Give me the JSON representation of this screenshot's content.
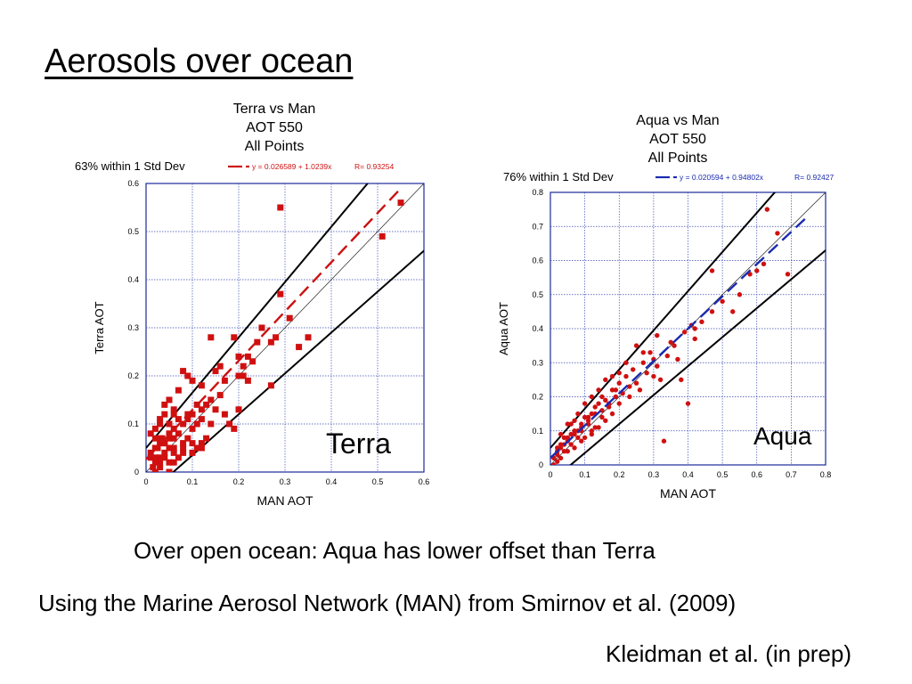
{
  "slide": {
    "title": "Aerosols over ocean",
    "caption_main": "Over open ocean:   Aqua has lower offset than Terra",
    "caption_source": "Using the Marine Aerosol Network (MAN)  from Smirnov et al. (2009)",
    "caption_ref": "Kleidman et al. (in prep)"
  },
  "chart_data": [
    {
      "type": "scatter",
      "title_lines": [
        "Terra vs Man",
        "AOT 550",
        "All Points"
      ],
      "stat_label": "63% within 1 Std Dev",
      "fit_label": "y = 0.026589 + 1.0239x",
      "r_label": "R= 0.93254",
      "xlabel": "MAN AOT",
      "ylabel": "Terra AOT",
      "xlim": [
        0,
        0.6
      ],
      "ylim": [
        0,
        0.6
      ],
      "xticks": [
        "0",
        "0.1",
        "0.2",
        "0.3",
        "0.4",
        "0.5",
        "0.6"
      ],
      "yticks": [
        "0",
        "0.1",
        "0.2",
        "0.3",
        "0.4",
        "0.5",
        "0.6"
      ],
      "grid": true,
      "marker": "square",
      "point_color": "#d01010",
      "fit_color": "#cc1111",
      "fit": {
        "intercept": 0.026589,
        "slope": 1.0239
      },
      "error_envelope": {
        "slope_upper": 1.15,
        "offset_upper": 0.05,
        "slope_lower": 0.85,
        "offset_lower": -0.05
      },
      "overlay_label": "Terra",
      "x": [
        0.55,
        0.51,
        0.29,
        0.29,
        0.31,
        0.35,
        0.33,
        0.27,
        0.28,
        0.19,
        0.2,
        0.21,
        0.2,
        0.22,
        0.24,
        0.25,
        0.21,
        0.23,
        0.27,
        0.14,
        0.15,
        0.16,
        0.17,
        0.16,
        0.14,
        0.1,
        0.12,
        0.13,
        0.11,
        0.09,
        0.08,
        0.1,
        0.12,
        0.12,
        0.14,
        0.11,
        0.07,
        0.06,
        0.05,
        0.06,
        0.07,
        0.04,
        0.03,
        0.05,
        0.04,
        0.03,
        0.02,
        0.01,
        0.02,
        0.03,
        0.05,
        0.06,
        0.07,
        0.08,
        0.09,
        0.1,
        0.09,
        0.08,
        0.06,
        0.05,
        0.04,
        0.03,
        0.02,
        0.02,
        0.01,
        0.02,
        0.03,
        0.04,
        0.06,
        0.08,
        0.1,
        0.11,
        0.12,
        0.13,
        0.15,
        0.05,
        0.06,
        0.03,
        0.02,
        0.01,
        0.18,
        0.19,
        0.2,
        0.17,
        0.22,
        0.03,
        0.04,
        0.05,
        0.08,
        0.09,
        0.07,
        0.1,
        0.12,
        0.02,
        0.04,
        0.06,
        0.05,
        0.015,
        0.025,
        0.035
      ],
      "y": [
        0.56,
        0.49,
        0.55,
        0.37,
        0.32,
        0.28,
        0.26,
        0.27,
        0.28,
        0.28,
        0.24,
        0.22,
        0.2,
        0.24,
        0.27,
        0.3,
        0.2,
        0.23,
        0.18,
        0.28,
        0.21,
        0.22,
        0.19,
        0.16,
        0.15,
        0.19,
        0.18,
        0.14,
        0.14,
        0.2,
        0.21,
        0.12,
        0.13,
        0.11,
        0.1,
        0.1,
        0.17,
        0.13,
        0.1,
        0.12,
        0.11,
        0.14,
        0.11,
        0.15,
        0.12,
        0.1,
        0.09,
        0.08,
        0.07,
        0.06,
        0.08,
        0.09,
        0.08,
        0.1,
        0.11,
        0.09,
        0.07,
        0.06,
        0.07,
        0.05,
        0.06,
        0.07,
        0.05,
        0.03,
        0.04,
        0.02,
        0.03,
        0.04,
        0.05,
        0.04,
        0.06,
        0.05,
        0.06,
        0.07,
        0.13,
        0.0,
        0.02,
        0.01,
        0.0,
        0.03,
        0.1,
        0.09,
        0.13,
        0.12,
        0.19,
        0.02,
        0.03,
        0.07,
        0.05,
        0.12,
        0.03,
        0.04,
        0.05,
        0.05,
        0.06,
        0.04,
        0.02,
        0.01,
        0.05,
        0.07
      ]
    },
    {
      "type": "scatter",
      "title_lines": [
        "Aqua vs Man",
        "AOT 550",
        "All Points"
      ],
      "stat_label": "76% within 1 Std Dev",
      "fit_label": "y = 0.020594 + 0.94802x",
      "r_label": "R= 0.92427",
      "xlabel": "MAN AOT",
      "ylabel": "Aqua AOT",
      "xlim": [
        0,
        0.8
      ],
      "ylim": [
        0,
        0.8
      ],
      "xticks": [
        "0",
        "0.1",
        "0.2",
        "0.3",
        "0.4",
        "0.5",
        "0.6",
        "0.7",
        "0.8"
      ],
      "yticks": [
        "0",
        "0.1",
        "0.2",
        "0.3",
        "0.4",
        "0.5",
        "0.6",
        "0.7",
        "0.8"
      ],
      "grid": true,
      "marker": "circle",
      "point_color": "#d01010",
      "fit_color": "#1a2bb0",
      "fit": {
        "intercept": 0.020594,
        "slope": 0.94802
      },
      "error_envelope": {
        "slope_upper": 1.15,
        "offset_upper": 0.05,
        "slope_lower": 0.85,
        "offset_lower": -0.05
      },
      "overlay_label": "Aqua",
      "x": [
        0.63,
        0.66,
        0.69,
        0.6,
        0.62,
        0.53,
        0.47,
        0.5,
        0.42,
        0.41,
        0.39,
        0.35,
        0.37,
        0.33,
        0.38,
        0.4,
        0.3,
        0.31,
        0.29,
        0.27,
        0.25,
        0.24,
        0.22,
        0.2,
        0.19,
        0.18,
        0.16,
        0.15,
        0.14,
        0.13,
        0.12,
        0.11,
        0.1,
        0.09,
        0.08,
        0.07,
        0.06,
        0.05,
        0.04,
        0.03,
        0.02,
        0.01,
        0.02,
        0.03,
        0.05,
        0.07,
        0.09,
        0.11,
        0.13,
        0.15,
        0.17,
        0.19,
        0.21,
        0.23,
        0.25,
        0.28,
        0.31,
        0.34,
        0.36,
        0.31,
        0.27,
        0.22,
        0.2,
        0.18,
        0.16,
        0.14,
        0.12,
        0.1,
        0.08,
        0.06,
        0.04,
        0.02,
        0.03,
        0.05,
        0.07,
        0.09,
        0.11,
        0.13,
        0.15,
        0.17,
        0.12,
        0.08,
        0.06,
        0.04,
        0.02,
        0.01,
        0.03,
        0.05,
        0.07,
        0.09,
        0.1,
        0.12,
        0.14,
        0.16,
        0.18,
        0.2,
        0.23,
        0.26,
        0.3,
        0.32,
        0.42,
        0.44,
        0.47,
        0.55,
        0.58
      ],
      "y": [
        0.75,
        0.68,
        0.56,
        0.57,
        0.59,
        0.45,
        0.57,
        0.48,
        0.37,
        0.41,
        0.39,
        0.36,
        0.31,
        0.07,
        0.25,
        0.18,
        0.31,
        0.29,
        0.33,
        0.3,
        0.35,
        0.28,
        0.26,
        0.24,
        0.22,
        0.22,
        0.19,
        0.2,
        0.18,
        0.17,
        0.15,
        0.14,
        0.14,
        0.12,
        0.1,
        0.1,
        0.09,
        0.07,
        0.06,
        0.05,
        0.03,
        0.02,
        0.04,
        0.06,
        0.08,
        0.09,
        0.11,
        0.13,
        0.15,
        0.16,
        0.18,
        0.2,
        0.21,
        0.23,
        0.24,
        0.27,
        0.29,
        0.32,
        0.35,
        0.38,
        0.33,
        0.3,
        0.27,
        0.26,
        0.25,
        0.22,
        0.2,
        0.18,
        0.15,
        0.12,
        0.08,
        0.05,
        0.09,
        0.12,
        0.13,
        0.1,
        0.12,
        0.11,
        0.14,
        0.17,
        0.09,
        0.08,
        0.06,
        0.04,
        0.01,
        0.0,
        0.02,
        0.04,
        0.05,
        0.07,
        0.08,
        0.1,
        0.11,
        0.13,
        0.15,
        0.18,
        0.2,
        0.22,
        0.26,
        0.25,
        0.4,
        0.42,
        0.45,
        0.5,
        0.56
      ]
    }
  ]
}
